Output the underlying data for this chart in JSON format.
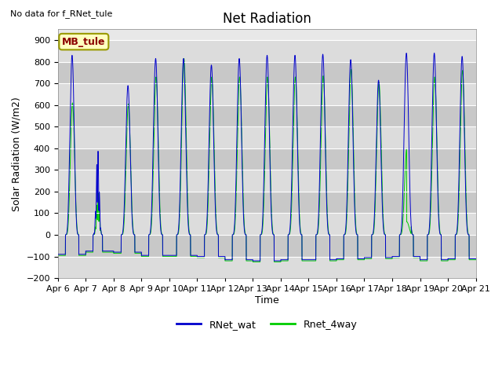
{
  "title": "Net Radiation",
  "xlabel": "Time",
  "ylabel": "Solar Radiation (W/m2)",
  "no_data_text": "No data for f_RNet_tule",
  "annotation_text": "MB_tule",
  "ylim": [
    -200,
    950
  ],
  "yticks": [
    -200,
    -100,
    0,
    100,
    200,
    300,
    400,
    500,
    600,
    700,
    800,
    900
  ],
  "xtick_labels": [
    "Apr 6",
    "Apr 7",
    "Apr 8",
    "Apr 9",
    "Apr 10",
    "Apr 11",
    "Apr 12",
    "Apr 13",
    "Apr 14",
    "Apr 15",
    "Apr 16",
    "Apr 17",
    "Apr 18",
    "Apr 19",
    "Apr 20",
    "Apr 21"
  ],
  "xtick_positions": [
    6,
    7,
    8,
    9,
    10,
    11,
    12,
    13,
    14,
    15,
    16,
    17,
    18,
    19,
    20,
    21
  ],
  "color_blue": "#0000CC",
  "color_green": "#00CC00",
  "legend_labels": [
    "RNet_wat",
    "Rnet_4way"
  ],
  "plot_bg_color": "#E8E8E8",
  "stripe_light": "#DCDCDC",
  "stripe_dark": "#C8C8C8",
  "title_fontsize": 12,
  "label_fontsize": 9,
  "tick_fontsize": 8,
  "day_params": [
    [
      6,
      830,
      610,
      -90,
      0.27,
      0.75
    ],
    [
      7,
      500,
      220,
      -75,
      0.26,
      0.6
    ],
    [
      8,
      690,
      605,
      -80,
      0.27,
      0.76
    ],
    [
      9,
      815,
      730,
      -95,
      0.26,
      0.76
    ],
    [
      10,
      815,
      815,
      -95,
      0.26,
      0.76
    ],
    [
      11,
      785,
      730,
      -100,
      0.26,
      0.76
    ],
    [
      12,
      815,
      730,
      -115,
      0.26,
      0.76
    ],
    [
      13,
      830,
      730,
      -120,
      0.26,
      0.76
    ],
    [
      14,
      830,
      730,
      -115,
      0.26,
      0.76
    ],
    [
      15,
      835,
      735,
      -115,
      0.26,
      0.76
    ],
    [
      16,
      810,
      765,
      -110,
      0.26,
      0.76
    ],
    [
      17,
      715,
      705,
      -105,
      0.26,
      0.76
    ],
    [
      18,
      840,
      400,
      -100,
      0.26,
      0.76
    ],
    [
      19,
      840,
      730,
      -115,
      0.26,
      0.76
    ],
    [
      20,
      825,
      760,
      -110,
      0.26,
      0.76
    ]
  ]
}
